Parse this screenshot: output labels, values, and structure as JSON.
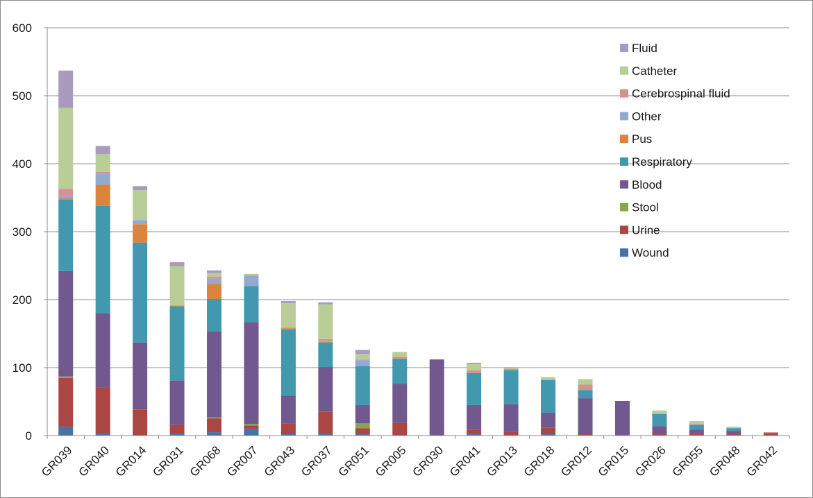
{
  "chart_data": {
    "type": "bar",
    "stacked": true,
    "title": "",
    "xlabel": "",
    "ylabel": "",
    "ylim": [
      0,
      600
    ],
    "yticks": [
      0,
      100,
      200,
      300,
      400,
      500,
      600
    ],
    "grid": true,
    "legend_position": "top-right",
    "categories": [
      "GR039",
      "GR040",
      "GR014",
      "GR031",
      "GR068",
      "GR007",
      "GR043",
      "GR037",
      "GR051",
      "GR005",
      "GR030",
      "GR041",
      "GR013",
      "GR018",
      "GR012",
      "GR015",
      "GR026",
      "GR055",
      "GR048",
      "GR042"
    ],
    "series": [
      {
        "name": "Wound",
        "color": "#4572a7",
        "values": [
          13,
          3,
          1,
          3,
          5,
          10,
          2,
          3,
          2,
          1,
          0,
          2,
          1,
          2,
          1,
          0,
          1,
          1,
          1,
          0
        ]
      },
      {
        "name": "Urine",
        "color": "#aa4643",
        "values": [
          72,
          68,
          37,
          13,
          20,
          5,
          16,
          32,
          9,
          18,
          0,
          7,
          5,
          10,
          1,
          1,
          1,
          1,
          1,
          3
        ]
      },
      {
        "name": "Stool",
        "color": "#89a54e",
        "values": [
          2,
          0,
          0,
          0,
          2,
          2,
          0,
          0,
          7,
          0,
          0,
          0,
          0,
          0,
          0,
          0,
          0,
          0,
          0,
          0
        ]
      },
      {
        "name": "Blood",
        "color": "#71588f",
        "values": [
          155,
          109,
          99,
          65,
          126,
          150,
          41,
          66,
          27,
          57,
          112,
          36,
          40,
          22,
          53,
          50,
          12,
          7,
          5,
          1
        ]
      },
      {
        "name": "Respiratory",
        "color": "#4198af",
        "values": [
          105,
          158,
          147,
          109,
          48,
          53,
          97,
          36,
          57,
          37,
          0,
          47,
          50,
          48,
          12,
          0,
          18,
          7,
          4,
          0
        ]
      },
      {
        "name": "Pus",
        "color": "#db843d",
        "values": [
          2,
          31,
          27,
          1,
          22,
          0,
          2,
          1,
          0,
          0,
          0,
          0,
          0,
          0,
          0,
          0,
          0,
          0,
          0,
          0
        ]
      },
      {
        "name": "Other",
        "color": "#93a9cf",
        "values": [
          5,
          16,
          6,
          0,
          8,
          15,
          0,
          1,
          9,
          0,
          0,
          0,
          0,
          0,
          0,
          0,
          0,
          0,
          0,
          0
        ]
      },
      {
        "name": "Cerebrospinal fluid",
        "color": "#d19392",
        "values": [
          9,
          3,
          0,
          1,
          3,
          1,
          1,
          3,
          1,
          3,
          0,
          4,
          2,
          0,
          8,
          0,
          0,
          1,
          0,
          1
        ]
      },
      {
        "name": "Catheter",
        "color": "#b9cd96",
        "values": [
          119,
          26,
          44,
          57,
          5,
          2,
          36,
          51,
          8,
          7,
          0,
          9,
          1,
          4,
          8,
          0,
          5,
          3,
          2,
          0
        ]
      },
      {
        "name": "Fluid",
        "color": "#a99bbd",
        "values": [
          55,
          12,
          6,
          6,
          4,
          0,
          3,
          3,
          6,
          0,
          0,
          2,
          1,
          0,
          0,
          0,
          0,
          1,
          0,
          0
        ]
      }
    ]
  }
}
